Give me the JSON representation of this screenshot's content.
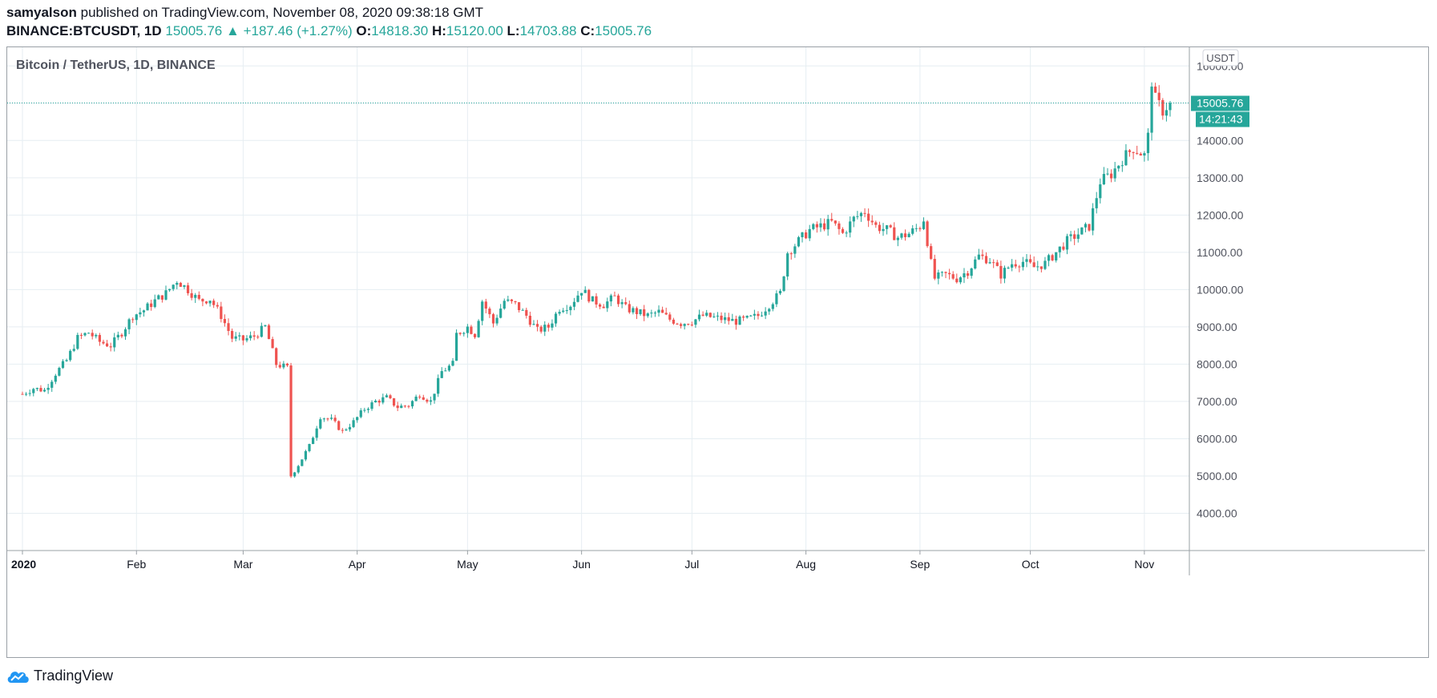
{
  "header": {
    "author": "samyalson",
    "published_text": "published on TradingView.com, November 08, 2020 09:38:18 GMT",
    "symbol": "BINANCE:BTCUSDT, 1D",
    "last": "15005.76",
    "change_arrow": "▲",
    "change": "+187.46 (+1.27%)",
    "open_label": "O:",
    "open": "14818.30",
    "high_label": "H:",
    "high": "15120.00",
    "low_label": "L:",
    "low": "14703.88",
    "close_label": "C:",
    "close": "15005.76"
  },
  "legend": {
    "title": "Bitcoin / TetherUS, 1D, BINANCE"
  },
  "footer": {
    "brand": "TradingView"
  },
  "colors": {
    "up": "#26a69a",
    "down": "#ef5350",
    "grid": "#e6eef2",
    "axis_text": "#50535e"
  },
  "chart_data": {
    "type": "candlestick",
    "title": "Bitcoin / TetherUS, 1D, BINANCE",
    "ylim": [
      3000,
      16500
    ],
    "y_ticks": [
      4000,
      5000,
      6000,
      7000,
      8000,
      9000,
      10000,
      11000,
      12000,
      13000,
      14000,
      15000,
      16000
    ],
    "y_tick_labels": [
      "4000.00",
      "5000.00",
      "6000.00",
      "7000.00",
      "8000.00",
      "9000.00",
      "10000.00",
      "11000.00",
      "12000.00",
      "13000.00",
      "14000.00",
      "15000.00",
      "16000.00"
    ],
    "currency_label": "USDT",
    "x_start": "2020-01-01",
    "x_end": "2020-11-08",
    "x_ticks": [
      {
        "date": "2020-01-01",
        "label": "2020"
      },
      {
        "date": "2020-02-01",
        "label": "Feb"
      },
      {
        "date": "2020-03-01",
        "label": "Mar"
      },
      {
        "date": "2020-04-01",
        "label": "Apr"
      },
      {
        "date": "2020-05-01",
        "label": "May"
      },
      {
        "date": "2020-06-01",
        "label": "Jun"
      },
      {
        "date": "2020-07-01",
        "label": "Jul"
      },
      {
        "date": "2020-08-01",
        "label": "Aug"
      },
      {
        "date": "2020-09-01",
        "label": "Sep"
      },
      {
        "date": "2020-10-01",
        "label": "Oct"
      },
      {
        "date": "2020-11-01",
        "label": "Nov"
      }
    ],
    "last_price": 15005.76,
    "last_price_label": "15005.76",
    "countdown_label": "14:21:43",
    "closes": [
      [
        0,
        7200
      ],
      [
        3,
        7350
      ],
      [
        6,
        7300
      ],
      [
        9,
        7750
      ],
      [
        12,
        8100
      ],
      [
        15,
        8700
      ],
      [
        18,
        8850
      ],
      [
        21,
        8600
      ],
      [
        24,
        8500
      ],
      [
        27,
        8850
      ],
      [
        30,
        9300
      ],
      [
        33,
        9450
      ],
      [
        36,
        9700
      ],
      [
        39,
        9900
      ],
      [
        42,
        10250
      ],
      [
        45,
        10000
      ],
      [
        48,
        9700
      ],
      [
        51,
        9750
      ],
      [
        54,
        9300
      ],
      [
        57,
        8700
      ],
      [
        60,
        8650
      ],
      [
        63,
        8750
      ],
      [
        66,
        9000
      ],
      [
        69,
        8000
      ],
      [
        72,
        7900
      ],
      [
        73,
        5000
      ],
      [
        75,
        5300
      ],
      [
        78,
        5800
      ],
      [
        81,
        6600
      ],
      [
        84,
        6500
      ],
      [
        87,
        6200
      ],
      [
        90,
        6450
      ],
      [
        93,
        6800
      ],
      [
        96,
        7000
      ],
      [
        99,
        7100
      ],
      [
        102,
        6850
      ],
      [
        105,
        6900
      ],
      [
        108,
        7200
      ],
      [
        111,
        7000
      ],
      [
        114,
        7800
      ],
      [
        117,
        8000
      ],
      [
        118,
        8800
      ],
      [
        121,
        9000
      ],
      [
        123,
        8800
      ],
      [
        125,
        9700
      ],
      [
        128,
        9100
      ],
      [
        131,
        9700
      ],
      [
        134,
        9600
      ],
      [
        137,
        9300
      ],
      [
        140,
        8900
      ],
      [
        143,
        9000
      ],
      [
        146,
        9500
      ],
      [
        149,
        9600
      ],
      [
        152,
        10000
      ],
      [
        155,
        9700
      ],
      [
        158,
        9600
      ],
      [
        161,
        9800
      ],
      [
        164,
        9500
      ],
      [
        167,
        9400
      ],
      [
        170,
        9300
      ],
      [
        173,
        9400
      ],
      [
        176,
        9200
      ],
      [
        179,
        9100
      ],
      [
        182,
        9150
      ],
      [
        185,
        9300
      ],
      [
        188,
        9250
      ],
      [
        191,
        9200
      ],
      [
        194,
        9150
      ],
      [
        197,
        9200
      ],
      [
        200,
        9300
      ],
      [
        203,
        9600
      ],
      [
        206,
        9900
      ],
      [
        208,
        11000
      ],
      [
        211,
        11300
      ],
      [
        214,
        11600
      ],
      [
        217,
        11700
      ],
      [
        220,
        11800
      ],
      [
        223,
        11500
      ],
      [
        226,
        11900
      ],
      [
        229,
        12100
      ],
      [
        232,
        11700
      ],
      [
        235,
        11600
      ],
      [
        238,
        11400
      ],
      [
        241,
        11500
      ],
      [
        244,
        11700
      ],
      [
        245,
        11900
      ],
      [
        247,
        10700
      ],
      [
        248,
        10300
      ],
      [
        251,
        10400
      ],
      [
        254,
        10300
      ],
      [
        257,
        10500
      ],
      [
        260,
        10900
      ],
      [
        263,
        10800
      ],
      [
        266,
        10400
      ],
      [
        269,
        10700
      ],
      [
        272,
        10750
      ],
      [
        275,
        10600
      ],
      [
        278,
        10700
      ],
      [
        281,
        11000
      ],
      [
        284,
        11300
      ],
      [
        287,
        11500
      ],
      [
        290,
        11700
      ],
      [
        293,
        12900
      ],
      [
        296,
        13100
      ],
      [
        299,
        13500
      ],
      [
        302,
        13800
      ],
      [
        305,
        13600
      ],
      [
        306,
        14100
      ],
      [
        307,
        15600
      ],
      [
        308,
        15100
      ],
      [
        310,
        14800
      ],
      [
        312,
        15005.76
      ]
    ]
  }
}
